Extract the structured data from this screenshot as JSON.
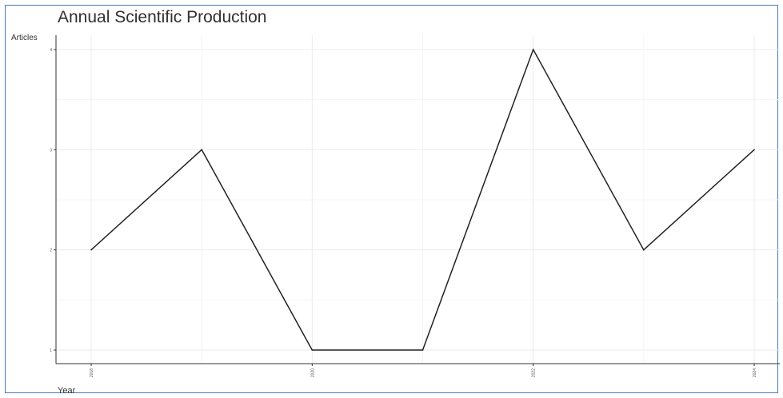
{
  "chart_data": {
    "type": "line",
    "title": "Annual Scientific Production",
    "xlabel": "Year",
    "ylabel": "Articles",
    "x": [
      2018,
      2019,
      2020,
      2021,
      2022,
      2023,
      2024
    ],
    "x_tick_labels": [
      "2018",
      "2020",
      "2022",
      "2024"
    ],
    "x_tick_values": [
      2018,
      2020,
      2022,
      2024
    ],
    "y_ticks": [
      1,
      2,
      3,
      4
    ],
    "series": [
      {
        "values": [
          2,
          3,
          1,
          1,
          4,
          2,
          3
        ]
      }
    ],
    "xlim": [
      2018,
      2024
    ],
    "ylim": [
      1,
      4
    ],
    "grid": true,
    "line_color": "#222222",
    "grid_color": "#ebebeb"
  }
}
